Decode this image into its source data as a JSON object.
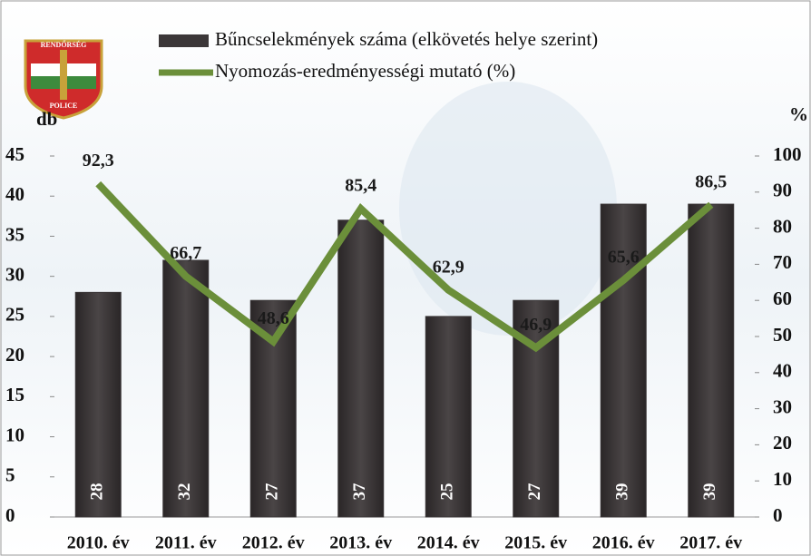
{
  "chart_data": {
    "type": "combo",
    "logo": {
      "top": "RENDŐRSÉG",
      "bottom": "POLICE"
    },
    "ylabel": "db",
    "y2label": "%",
    "categories": [
      "2010. év",
      "2011. év",
      "2012. év",
      "2013. év",
      "2014. év",
      "2015. év",
      "2016. év",
      "2017. év"
    ],
    "series": [
      {
        "name": "Bűncselekmények száma (elkövetés helye szerint)",
        "type": "bar",
        "color": "#3b3738",
        "values": [
          28,
          32,
          27,
          37,
          25,
          27,
          39,
          39
        ]
      },
      {
        "name": "Nyomozás-eredményességi mutató (%)",
        "type": "line",
        "axis": "y2",
        "color": "#6b8f3a",
        "values": [
          92.3,
          66.7,
          48.6,
          85.4,
          62.9,
          46.9,
          65.6,
          86.5
        ],
        "value_labels": [
          "92,3",
          "66,7",
          "48,6",
          "85,4",
          "62,9",
          "46,9",
          "65,6",
          "86,5"
        ]
      }
    ],
    "ylim": [
      0,
      45
    ],
    "yticks": [
      0,
      5,
      10,
      15,
      20,
      25,
      30,
      35,
      40,
      45
    ],
    "y2lim": [
      0,
      100
    ],
    "y2ticks": [
      0,
      10,
      20,
      30,
      40,
      50,
      60,
      70,
      80,
      90,
      100
    ]
  }
}
